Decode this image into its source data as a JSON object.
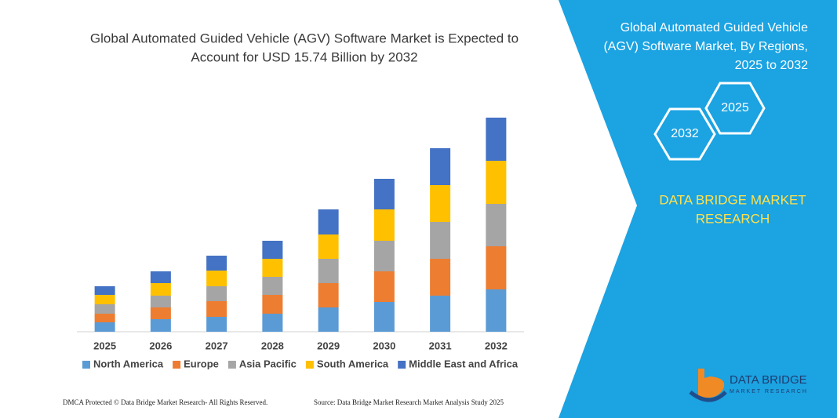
{
  "chart_data": {
    "type": "stacked-bar",
    "title": [
      "Global Automated Guided Vehicle (AGV) Software Market is Expected to",
      "Account for USD 15.74 Billion by 2032"
    ],
    "categories": [
      "2025",
      "2026",
      "2027",
      "2028",
      "2029",
      "2030",
      "2031",
      "2032"
    ],
    "series": [
      {
        "name": "North America",
        "color": "#5b9bd5",
        "values": [
          12,
          16,
          19,
          23,
          31,
          38,
          46,
          54
        ]
      },
      {
        "name": "Europe",
        "color": "#ed7d31",
        "values": [
          11,
          15,
          20,
          24,
          31,
          39,
          47,
          55
        ]
      },
      {
        "name": "Asia Pacific",
        "color": "#a5a5a5",
        "values": [
          12,
          15,
          19,
          23,
          31,
          39,
          47,
          54
        ]
      },
      {
        "name": "South America",
        "color": "#ffc000",
        "values": [
          12,
          16,
          20,
          23,
          31,
          40,
          47,
          55
        ]
      },
      {
        "name": "Middle East and Africa",
        "color": "#4472c4",
        "values": [
          11,
          15,
          19,
          23,
          32,
          39,
          47,
          55
        ]
      }
    ],
    "ylim": [
      0,
      300
    ],
    "legend": "bottom"
  },
  "panel": {
    "title": [
      "Global Automated Guided Vehicle",
      "(AGV) Software Market, By Regions,",
      "2025 to 2032"
    ],
    "hexagons": [
      "2025",
      "2032"
    ],
    "brand": [
      "DATA BRIDGE MARKET",
      "RESEARCH"
    ]
  },
  "footer": {
    "left": "DMCA Protected © Data Bridge Market Research-  All Rights Reserved.",
    "right": "Source: Data Bridge Market Research  Market Analysis Study 2025"
  },
  "logo": {
    "name": "DATA BRIDGE",
    "tagline": "MARKET RESEARCH"
  }
}
